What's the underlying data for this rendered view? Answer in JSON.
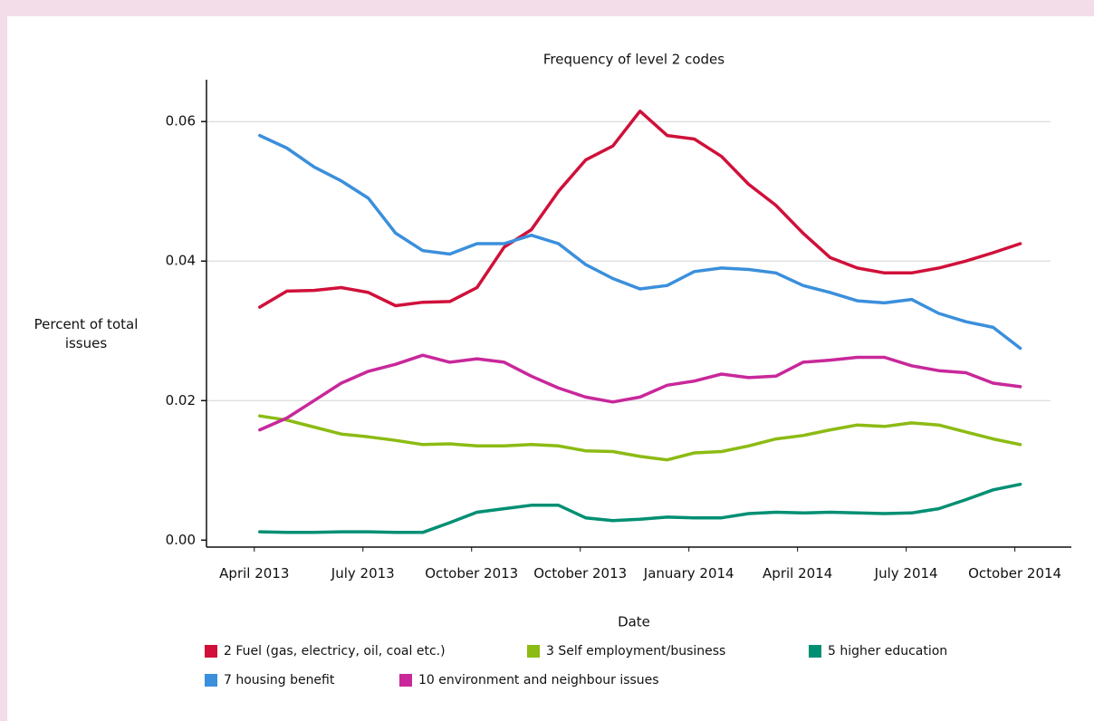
{
  "chart_data": {
    "type": "line",
    "title": "Frequency of level 2 codes",
    "x_label": "Date",
    "y_label": "Percent of total issues",
    "x": [
      0.05,
      0.3,
      0.55,
      0.8,
      1.05,
      1.3,
      1.55,
      1.8,
      2.05,
      2.3,
      2.55,
      2.8,
      3.05,
      3.3,
      3.55,
      3.8,
      4.05,
      4.3,
      4.55,
      4.8,
      5.05,
      5.3,
      5.55,
      5.8,
      6.05,
      6.3,
      6.55,
      6.8,
      7.05
    ],
    "xlim": [
      -0.44,
      7.52
    ],
    "xticks": [
      {
        "value": 0,
        "label": "April 2013"
      },
      {
        "value": 1,
        "label": "July 2013"
      },
      {
        "value": 2,
        "label": "October 2013"
      },
      {
        "value": 3,
        "label": "October 2013"
      },
      {
        "value": 4,
        "label": "January 2014"
      },
      {
        "value": 5,
        "label": "April 2014"
      },
      {
        "value": 6,
        "label": "July 2014"
      },
      {
        "value": 7,
        "label": "October 2014"
      }
    ],
    "ylim": [
      -0.001,
      0.066
    ],
    "yticks": [
      {
        "value": 0,
        "label": "0.00"
      },
      0.02,
      0.04,
      0.06
    ],
    "grid": true,
    "series": [
      {
        "name": "2 Fuel (gas, electricy, oil, coal etc.)",
        "color": "#d0103a",
        "values": [
          0.0334,
          0.0357,
          0.0358,
          0.0362,
          0.0355,
          0.0336,
          0.0341,
          0.0342,
          0.0362,
          0.042,
          0.0445,
          0.05,
          0.0545,
          0.0565,
          0.0615,
          0.058,
          0.0575,
          0.055,
          0.051,
          0.048,
          0.044,
          0.0405,
          0.039,
          0.0383,
          0.0383,
          0.039,
          0.04,
          0.0412,
          0.0425
        ]
      },
      {
        "name": "3 Self employment/business",
        "color": "#8cbb13",
        "values": [
          0.0178,
          0.0172,
          0.0162,
          0.0152,
          0.0148,
          0.0143,
          0.0137,
          0.0138,
          0.0135,
          0.0135,
          0.0137,
          0.0135,
          0.0128,
          0.0127,
          0.012,
          0.0115,
          0.0125,
          0.0127,
          0.0135,
          0.0145,
          0.015,
          0.0158,
          0.0165,
          0.0163,
          0.0168,
          0.0165,
          0.0155,
          0.0145,
          0.0137
        ]
      },
      {
        "name": "5 higher education",
        "color": "#008f73",
        "values": [
          0.0012,
          0.0011,
          0.0011,
          0.0012,
          0.0012,
          0.0011,
          0.0011,
          0.0025,
          0.004,
          0.0045,
          0.005,
          0.005,
          0.0032,
          0.0028,
          0.003,
          0.0033,
          0.0032,
          0.0032,
          0.0038,
          0.004,
          0.0039,
          0.004,
          0.0039,
          0.0038,
          0.0039,
          0.0045,
          0.0058,
          0.0072,
          0.008
        ]
      },
      {
        "name": "7 housing benefit",
        "color": "#3b8fdc",
        "values": [
          0.058,
          0.0562,
          0.0535,
          0.0515,
          0.049,
          0.044,
          0.0415,
          0.041,
          0.0425,
          0.0425,
          0.0437,
          0.0425,
          0.0395,
          0.0375,
          0.036,
          0.0365,
          0.0385,
          0.039,
          0.0388,
          0.0383,
          0.0365,
          0.0355,
          0.0343,
          0.034,
          0.0345,
          0.0325,
          0.0313,
          0.0305,
          0.0275
        ]
      },
      {
        "name": "10 environment and neighbour issues",
        "color": "#c8289a",
        "values": [
          0.0158,
          0.0175,
          0.02,
          0.0225,
          0.0242,
          0.0252,
          0.0265,
          0.0255,
          0.026,
          0.0255,
          0.0235,
          0.0218,
          0.0205,
          0.0198,
          0.0205,
          0.0222,
          0.0228,
          0.0238,
          0.0233,
          0.0235,
          0.0255,
          0.0258,
          0.0262,
          0.0262,
          0.025,
          0.0243,
          0.024,
          0.0225,
          0.022
        ]
      }
    ]
  }
}
